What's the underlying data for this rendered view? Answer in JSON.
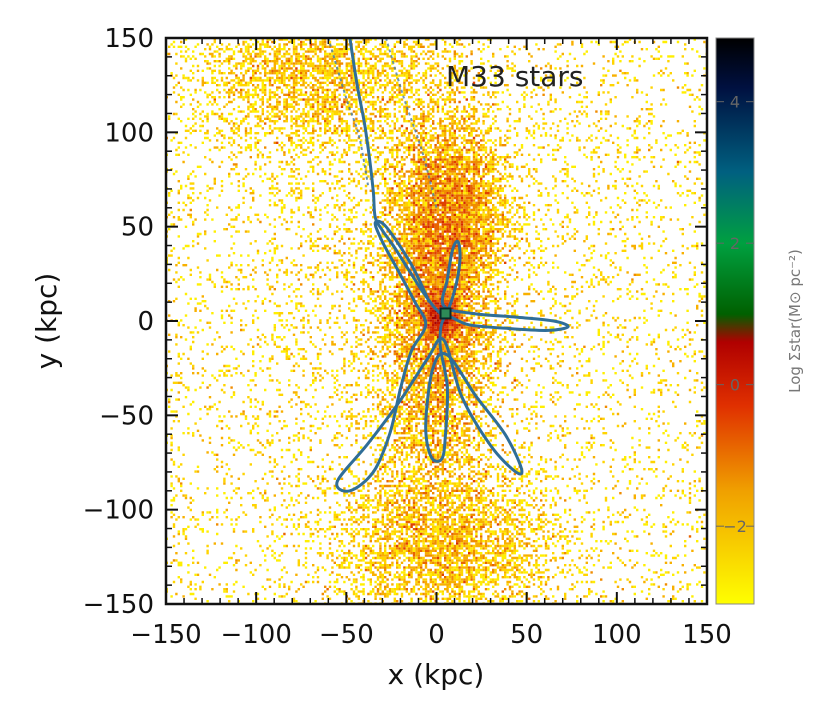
{
  "chart_data": {
    "type": "heatmap",
    "title": "",
    "annotation": "M33 stars",
    "xlabel": "x (kpc)",
    "ylabel": "y (kpc)",
    "xlim": [
      -150,
      150
    ],
    "ylim": [
      -150,
      150
    ],
    "xticks": [
      -150,
      -100,
      -50,
      0,
      50,
      100,
      150
    ],
    "yticks": [
      -150,
      -100,
      -50,
      0,
      50,
      100,
      150
    ],
    "xtick_labels": [
      "−150",
      "−100",
      "−50",
      "0",
      "50",
      "100",
      "150"
    ],
    "ytick_labels": [
      "−150",
      "−100",
      "−50",
      "0",
      "50",
      "100",
      "150"
    ],
    "colorbar": {
      "label": "Log Σstar(M⊙ pc⁻²)",
      "range": [
        -3.1,
        4.9
      ],
      "ticks": [
        -2,
        0,
        2,
        4
      ],
      "tick_labels": [
        "−2",
        "0",
        "2",
        "4"
      ],
      "stops": [
        {
          "value": -3.1,
          "color": "#ffff00"
        },
        {
          "value": -1.5,
          "color": "#f0a000"
        },
        {
          "value": -0.3,
          "color": "#e03000"
        },
        {
          "value": 0.6,
          "color": "#b00000"
        },
        {
          "value": 1.0,
          "color": "#006000"
        },
        {
          "value": 2.0,
          "color": "#00a040"
        },
        {
          "value": 3.0,
          "color": "#006080"
        },
        {
          "value": 4.2,
          "color": "#001040"
        },
        {
          "value": 4.9,
          "color": "#000000"
        }
      ]
    },
    "series": [
      {
        "name": "orbit",
        "color": "#2f6e98",
        "points": [
          [
            -48,
            150
          ],
          [
            -44,
            125
          ],
          [
            -40,
            105
          ],
          [
            -37,
            85
          ],
          [
            -35,
            68
          ],
          [
            -34,
            55
          ],
          [
            -30,
            48
          ],
          [
            -24,
            40
          ],
          [
            -16,
            28
          ],
          [
            -8,
            16
          ],
          [
            0,
            6
          ],
          [
            5,
            4
          ],
          [
            10,
            16
          ],
          [
            13,
            32
          ],
          [
            12,
            42
          ],
          [
            9,
            38
          ],
          [
            6,
            22
          ],
          [
            4,
            8
          ],
          [
            20,
            4
          ],
          [
            45,
            2
          ],
          [
            65,
            0
          ],
          [
            73,
            -3
          ],
          [
            62,
            -5
          ],
          [
            40,
            -4
          ],
          [
            18,
            -2
          ],
          [
            5,
            2
          ],
          [
            2,
            -12
          ],
          [
            6,
            -35
          ],
          [
            5,
            -60
          ],
          [
            3,
            -73
          ],
          [
            -3,
            -72
          ],
          [
            -6,
            -55
          ],
          [
            -2,
            -25
          ],
          [
            6,
            -18
          ],
          [
            22,
            -40
          ],
          [
            38,
            -60
          ],
          [
            47,
            -78
          ],
          [
            44,
            -80
          ],
          [
            30,
            -66
          ],
          [
            14,
            -40
          ],
          [
            4,
            -10
          ],
          [
            -5,
            -20
          ],
          [
            -20,
            -42
          ],
          [
            -38,
            -65
          ],
          [
            -55,
            -85
          ],
          [
            -48,
            -90
          ],
          [
            -35,
            -80
          ],
          [
            -26,
            -60
          ],
          [
            -20,
            -36
          ],
          [
            -14,
            -16
          ],
          [
            -6,
            -2
          ],
          [
            -12,
            10
          ],
          [
            -22,
            28
          ],
          [
            -30,
            42
          ],
          [
            -34,
            52
          ],
          [
            -28,
            50
          ],
          [
            -14,
            30
          ],
          [
            -4,
            10
          ]
        ],
        "trail": [
          [
            -48,
            150
          ],
          [
            -44,
            125
          ],
          [
            -40,
            105
          ],
          [
            -37,
            85
          ],
          [
            -34,
            55
          ]
        ],
        "trail2": [
          [
            -60,
            150
          ],
          [
            -50,
            118
          ],
          [
            -43,
            98
          ],
          [
            -38,
            72
          ]
        ],
        "trail3": [
          [
            -28,
            150
          ],
          [
            -18,
            118
          ],
          [
            -8,
            90
          ],
          [
            0,
            60
          ]
        ]
      },
      {
        "name": "M33 center",
        "type": "marker",
        "points": [
          [
            5,
            4
          ]
        ],
        "color": "#2e8b57"
      }
    ],
    "density": [
      {
        "cx": 0,
        "cy": 10,
        "sx": 16,
        "sy": 55,
        "n": 9000
      },
      {
        "cx": 3,
        "cy": 2,
        "sx": 5,
        "sy": 5,
        "n": 1600
      },
      {
        "cx": 12,
        "cy": 60,
        "sx": 14,
        "sy": 20,
        "n": 2200
      },
      {
        "cx": 4,
        "cy": -120,
        "sx": 32,
        "sy": 22,
        "n": 3400
      },
      {
        "cx": -70,
        "cy": 130,
        "sx": 30,
        "sy": 22,
        "n": 2600
      },
      {
        "cx": -10,
        "cy": 40,
        "sx": 60,
        "sy": 90,
        "n": 2600
      },
      {
        "cx": 0,
        "cy": 0,
        "sx": 150,
        "sy": 150,
        "n": 5200
      }
    ]
  }
}
